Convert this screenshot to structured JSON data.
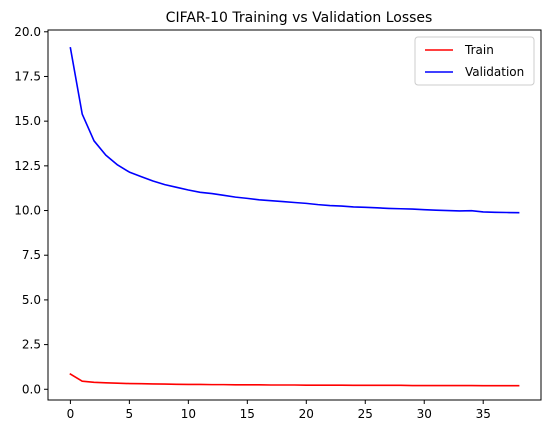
{
  "chart_data": {
    "type": "line",
    "title": "CIFAR-10 Training vs Validation Losses",
    "xlabel": "",
    "ylabel": "",
    "xlim": [
      -1.9,
      39.9
    ],
    "ylim": [
      -0.6,
      20.1
    ],
    "xticks": [
      0,
      5,
      10,
      15,
      20,
      25,
      30,
      35
    ],
    "xtick_labels": [
      "0",
      "5",
      "10",
      "15",
      "20",
      "25",
      "30",
      "35"
    ],
    "yticks": [
      0,
      2.5,
      5,
      7.5,
      10,
      12.5,
      15,
      17.5,
      20
    ],
    "ytick_labels": [
      "0.0",
      "2.5",
      "5.0",
      "7.5",
      "10.0",
      "12.5",
      "15.0",
      "17.5",
      "20.0"
    ],
    "grid": false,
    "legend_position": "top-right",
    "x": [
      0,
      1,
      2,
      3,
      4,
      5,
      6,
      7,
      8,
      9,
      10,
      11,
      12,
      13,
      14,
      15,
      16,
      17,
      18,
      19,
      20,
      21,
      22,
      23,
      24,
      25,
      26,
      27,
      28,
      29,
      30,
      31,
      32,
      33,
      34,
      35,
      36,
      37,
      38
    ],
    "series": [
      {
        "name": "Train",
        "color": "#ff0000",
        "values": [
          0.85,
          0.45,
          0.39,
          0.36,
          0.34,
          0.32,
          0.31,
          0.3,
          0.29,
          0.28,
          0.27,
          0.27,
          0.26,
          0.26,
          0.25,
          0.25,
          0.25,
          0.24,
          0.24,
          0.24,
          0.23,
          0.23,
          0.23,
          0.23,
          0.22,
          0.22,
          0.22,
          0.22,
          0.22,
          0.21,
          0.21,
          0.21,
          0.21,
          0.21,
          0.21,
          0.2,
          0.2,
          0.2,
          0.2
        ]
      },
      {
        "name": "Validation",
        "color": "#0000ff",
        "values": [
          19.1,
          15.4,
          13.9,
          13.1,
          12.55,
          12.15,
          11.9,
          11.65,
          11.45,
          11.3,
          11.15,
          11.02,
          10.95,
          10.85,
          10.75,
          10.68,
          10.6,
          10.55,
          10.5,
          10.45,
          10.4,
          10.33,
          10.28,
          10.25,
          10.2,
          10.18,
          10.15,
          10.12,
          10.1,
          10.08,
          10.05,
          10.02,
          10.0,
          9.98,
          9.99,
          9.92,
          9.9,
          9.89,
          9.88
        ]
      }
    ]
  }
}
